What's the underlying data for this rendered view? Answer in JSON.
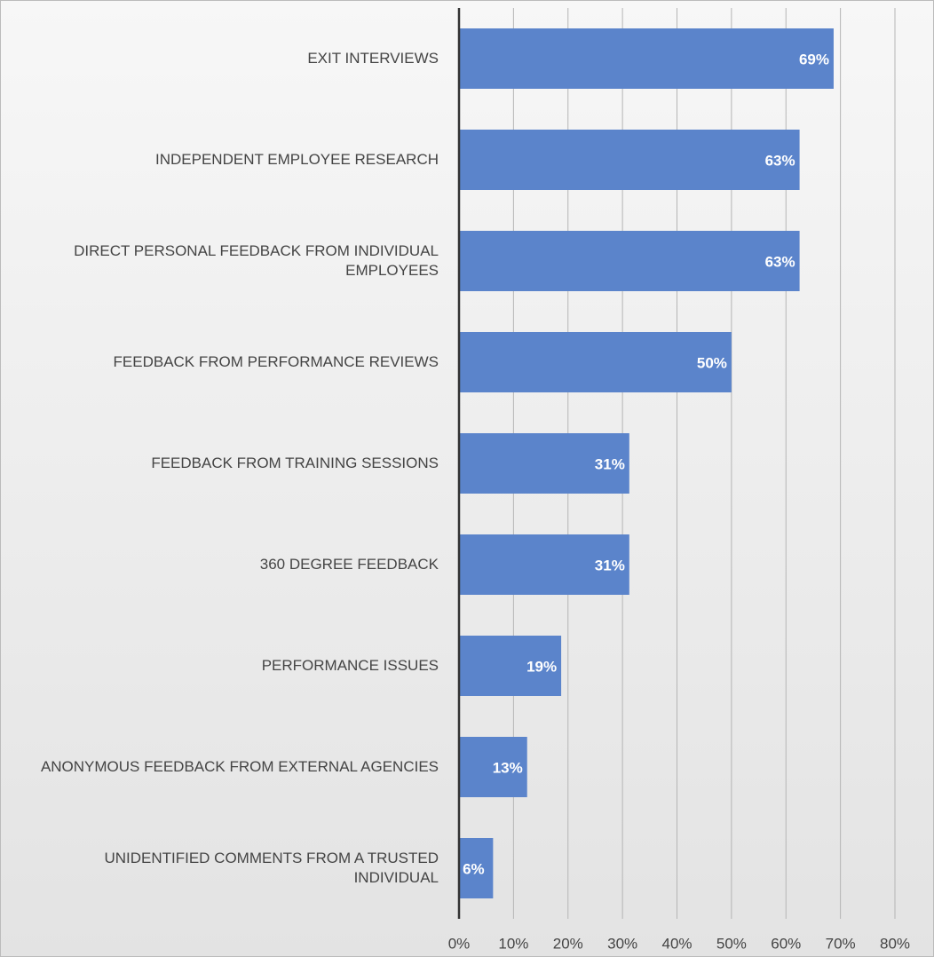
{
  "chart_data": {
    "type": "bar",
    "orientation": "horizontal",
    "categories": [
      "EXIT INTERVIEWS",
      "INDEPENDENT EMPLOYEE RESEARCH",
      "DIRECT PERSONAL FEEDBACK FROM INDIVIDUAL EMPLOYEES",
      "FEEDBACK FROM PERFORMANCE REVIEWS",
      "FEEDBACK FROM TRAINING SESSIONS",
      "360 DEGREE FEEDBACK",
      "PERFORMANCE ISSUES",
      "ANONYMOUS FEEDBACK FROM EXTERNAL AGENCIES",
      "UNIDENTIFIED COMMENTS FROM A TRUSTED INDIVIDUAL"
    ],
    "values": [
      68.75,
      62.5,
      62.5,
      50,
      31.25,
      31.25,
      18.75,
      12.5,
      6.25
    ],
    "value_labels": [
      "69%",
      "63%",
      "63%",
      "50%",
      "31%",
      "31%",
      "19%",
      "13%",
      "6%"
    ],
    "color": "#5b84cb",
    "xlim": [
      0,
      80
    ],
    "xticks": [
      {
        "value": 0,
        "label": "0%"
      },
      {
        "value": 10,
        "label": "10%"
      },
      {
        "value": 20,
        "label": "20%"
      },
      {
        "value": 30,
        "label": "30%"
      },
      {
        "value": 40,
        "label": "40%"
      },
      {
        "value": 50,
        "label": "50%"
      },
      {
        "value": 60,
        "label": "60%"
      },
      {
        "value": 70,
        "label": "70%"
      },
      {
        "value": 80,
        "label": "80%"
      }
    ],
    "grid": true
  }
}
